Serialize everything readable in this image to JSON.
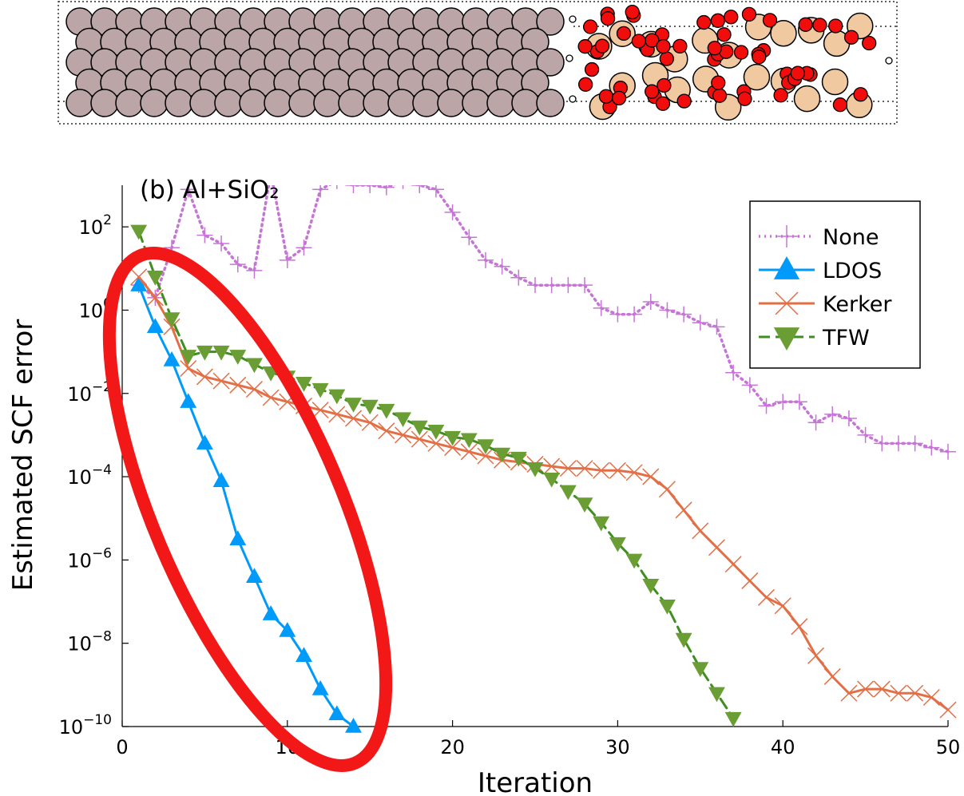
{
  "chart_data": {
    "type": "line",
    "panel_label": "(b) Al+SiO₂",
    "xlabel": "Iteration",
    "ylabel": "Estimated SCF error",
    "y_scale": "log",
    "xlim": [
      0,
      50
    ],
    "ylim_exponent": [
      -10,
      3
    ],
    "x_ticks": [
      0,
      10,
      20,
      30,
      40,
      50
    ],
    "y_ticks": [
      {
        "base": "10",
        "exp": "−10",
        "value_exp": -10
      },
      {
        "base": "10",
        "exp": "−8",
        "value_exp": -8
      },
      {
        "base": "10",
        "exp": "−6",
        "value_exp": -6
      },
      {
        "base": "10",
        "exp": "−4",
        "value_exp": -4
      },
      {
        "base": "10",
        "exp": "−2",
        "value_exp": -2
      },
      {
        "base": "10",
        "exp": "0",
        "value_exp": 0
      },
      {
        "base": "10",
        "exp": "2",
        "value_exp": 2
      }
    ],
    "grid": false,
    "legend_position": "top-right",
    "series": [
      {
        "name": "None",
        "color": "#C675D6",
        "marker": "plus",
        "line": "dotted",
        "x": [
          1,
          2,
          3,
          4,
          5,
          6,
          7,
          8,
          9,
          10,
          11,
          12,
          13,
          14,
          15,
          16,
          17,
          18,
          19,
          20,
          21,
          22,
          23,
          24,
          25,
          26,
          27,
          28,
          29,
          30,
          31,
          32,
          33,
          34,
          35,
          36,
          37,
          38,
          39,
          40,
          41,
          42,
          43,
          44,
          45,
          46,
          47,
          48,
          49,
          50
        ],
        "log10_y": [
          0.6,
          0.3,
          1.5,
          2.9,
          1.8,
          1.6,
          1.1,
          0.95,
          3.3,
          1.2,
          1.5,
          2.9,
          3.1,
          3.0,
          3.0,
          2.95,
          3.1,
          3.0,
          2.9,
          2.35,
          1.75,
          1.2,
          1.05,
          0.78,
          0.6,
          0.6,
          0.6,
          0.6,
          0.05,
          -0.1,
          -0.1,
          0.2,
          0.0,
          -0.1,
          -0.3,
          -0.4,
          -1.5,
          -1.8,
          -2.3,
          -2.2,
          -2.2,
          -2.7,
          -2.5,
          -2.6,
          -3.0,
          -3.2,
          -3.2,
          -3.2,
          -3.3,
          -3.4
        ],
        "note_y_above_axis_clipped": true
      },
      {
        "name": "LDOS",
        "color": "#009AFA",
        "marker": "triangle-up",
        "line": "solid",
        "x": [
          1,
          2,
          3,
          4,
          5,
          6,
          7,
          8,
          9,
          10,
          11,
          12,
          13,
          14
        ],
        "log10_y": [
          0.6,
          -0.4,
          -1.2,
          -2.2,
          -3.2,
          -4.1,
          -5.5,
          -6.4,
          -7.3,
          -7.7,
          -8.3,
          -9.1,
          -9.7,
          -10.0
        ]
      },
      {
        "name": "Kerker",
        "color": "#E26F46",
        "marker": "x",
        "line": "solid",
        "x": [
          1,
          2,
          3,
          4,
          5,
          6,
          7,
          8,
          9,
          10,
          11,
          12,
          13,
          14,
          15,
          16,
          17,
          18,
          19,
          20,
          21,
          22,
          23,
          24,
          25,
          26,
          27,
          28,
          29,
          30,
          31,
          32,
          33,
          34,
          35,
          36,
          37,
          38,
          39,
          40,
          41,
          42,
          43,
          44,
          45,
          46,
          47,
          48,
          49,
          50
        ],
        "log10_y": [
          0.8,
          0.3,
          -0.4,
          -1.4,
          -1.6,
          -1.7,
          -1.8,
          -1.9,
          -2.1,
          -2.2,
          -2.3,
          -2.4,
          -2.5,
          -2.6,
          -2.7,
          -2.9,
          -3.0,
          -3.1,
          -3.2,
          -3.3,
          -3.4,
          -3.5,
          -3.6,
          -3.65,
          -3.7,
          -3.75,
          -3.8,
          -3.8,
          -3.85,
          -3.85,
          -3.9,
          -4.0,
          -4.3,
          -4.8,
          -5.3,
          -5.7,
          -6.1,
          -6.5,
          -6.9,
          -7.1,
          -7.6,
          -8.3,
          -8.8,
          -9.2,
          -9.1,
          -9.1,
          -9.2,
          -9.2,
          -9.3,
          -9.6
        ]
      },
      {
        "name": "TFW",
        "color": "#3E8F20",
        "color_marker": "#6A9E35",
        "marker": "triangle-down",
        "line": "dashed",
        "x": [
          1,
          2,
          3,
          4,
          5,
          6,
          7,
          8,
          9,
          10,
          11,
          12,
          13,
          14,
          15,
          16,
          17,
          18,
          19,
          20,
          21,
          22,
          23,
          24,
          25,
          26,
          27,
          28,
          29,
          30,
          31,
          32,
          33,
          34,
          35,
          36,
          37
        ],
        "log10_y": [
          1.9,
          0.8,
          -0.2,
          -1.1,
          -1.0,
          -1.0,
          -1.1,
          -1.3,
          -1.5,
          -1.6,
          -1.75,
          -1.9,
          -2.05,
          -2.25,
          -2.3,
          -2.4,
          -2.6,
          -2.8,
          -2.9,
          -3.05,
          -3.1,
          -3.25,
          -3.45,
          -3.55,
          -3.8,
          -4.05,
          -4.35,
          -4.65,
          -5.1,
          -5.6,
          -6.0,
          -6.6,
          -7.1,
          -7.9,
          -8.6,
          -9.2,
          -9.8
        ]
      }
    ],
    "annotation": {
      "shape": "ellipse",
      "color": "#F21818",
      "highlights": "LDOS"
    }
  },
  "structure_panel": {
    "description_type": "atomic slab illustration",
    "left_atom_color": "#BCA5A6",
    "right_atom_color": "#F0C9A0",
    "oxygen_color": "#F20D0D"
  }
}
